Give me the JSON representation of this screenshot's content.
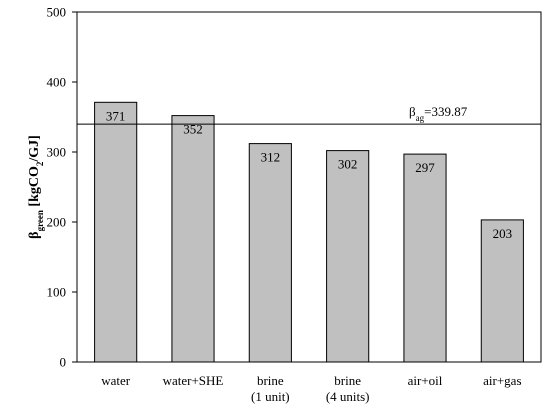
{
  "chart_data": {
    "type": "bar",
    "categories": [
      [
        "water"
      ],
      [
        "water+SHE"
      ],
      [
        "brine",
        "(1 unit)"
      ],
      [
        "brine",
        "(4 units)"
      ],
      [
        "air+oil"
      ],
      [
        "air+gas"
      ]
    ],
    "values": [
      371,
      352,
      312,
      302,
      297,
      203
    ],
    "value_labels": [
      "371",
      "352",
      "312",
      "302",
      "297",
      "203"
    ],
    "ylabel": {
      "base": "β",
      "sub": "green",
      "text": " [kgCO",
      "sub2": "2",
      "text2": "/GJ]"
    },
    "ylim": [
      0,
      500
    ],
    "yticks": [
      0,
      100,
      200,
      300,
      400,
      500
    ],
    "grid": false,
    "reference_line": {
      "value": 339.87,
      "label_base": "β",
      "label_sub": "ag",
      "label_text": "=339.87"
    },
    "colors": {
      "bar_fill": "#c0c0c0",
      "bar_stroke": "#000000",
      "axis": "#000000"
    }
  }
}
